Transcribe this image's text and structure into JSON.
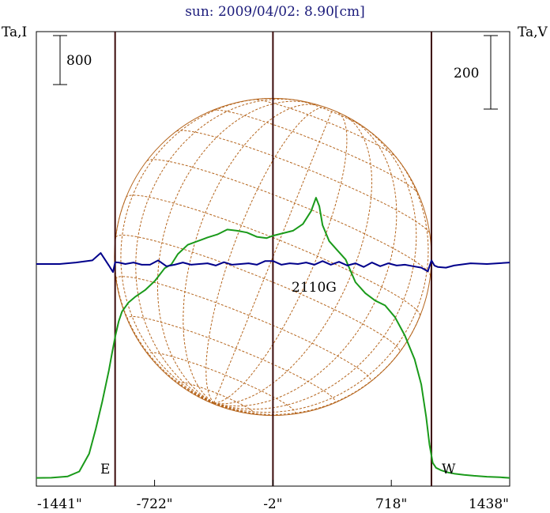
{
  "title": "sun: 2009/04/02: 8.90[cm]",
  "left_axis_label": "Ta,I",
  "right_axis_label": "Ta,V",
  "scale_left": "800",
  "scale_right": "200",
  "east_label": "E",
  "west_label": "W",
  "region_label": "2110G",
  "x_ticks": [
    "-1441\"",
    "-722\"",
    "-2\"",
    "718\"",
    "1438\""
  ],
  "colors": {
    "intensity": "#1a9a1a",
    "polarization": "#00008b",
    "grid": "#b5651d",
    "limb_lines": "#3a0a0a",
    "title": "#1a1a7a"
  },
  "chart_data": {
    "type": "line",
    "title": "sun: 2009/04/02: 8.90[cm]",
    "xlim": [
      -1441,
      1438
    ],
    "x_tick_values": [
      -1441,
      -722,
      -2,
      718,
      1438
    ],
    "limb_positions": [
      -962,
      -2,
      962
    ],
    "series": [
      {
        "name": "Ta,I",
        "axis": "left",
        "x": [
          -1441,
          -1350,
          -1250,
          -1180,
          -1120,
          -1080,
          -1040,
          -1000,
          -980,
          -960,
          -940,
          -920,
          -880,
          -840,
          -780,
          -720,
          -660,
          -620,
          -580,
          -520,
          -460,
          -400,
          -340,
          -280,
          -220,
          -160,
          -100,
          -40,
          0,
          60,
          120,
          180,
          230,
          260,
          280,
          300,
          340,
          380,
          440,
          500,
          560,
          620,
          680,
          740,
          800,
          860,
          900,
          930,
          950,
          970,
          990,
          1020,
          1060,
          1100,
          1160,
          1220,
          1300,
          1380,
          1438
        ],
        "y": [
          5,
          8,
          30,
          110,
          400,
          800,
          1250,
          1760,
          2050,
          2330,
          2560,
          2720,
          2870,
          2960,
          3070,
          3220,
          3430,
          3490,
          3660,
          3810,
          3870,
          3930,
          3980,
          4060,
          4040,
          4010,
          3940,
          3920,
          3960,
          4000,
          4040,
          4150,
          4360,
          4580,
          4440,
          4130,
          3870,
          3750,
          3570,
          3200,
          3020,
          2900,
          2820,
          2630,
          2330,
          1940,
          1530,
          1000,
          550,
          250,
          170,
          130,
          95,
          75,
          55,
          40,
          25,
          15,
          5
        ]
      },
      {
        "name": "Ta,V",
        "axis": "right",
        "x": [
          -1441,
          -1300,
          -1200,
          -1100,
          -1050,
          -1000,
          -975,
          -962,
          -940,
          -900,
          -850,
          -800,
          -750,
          -700,
          -650,
          -600,
          -550,
          -500,
          -450,
          -400,
          -350,
          -300,
          -250,
          -200,
          -150,
          -100,
          -50,
          0,
          50,
          100,
          150,
          200,
          250,
          300,
          350,
          400,
          450,
          500,
          550,
          600,
          650,
          700,
          750,
          800,
          850,
          900,
          940,
          962,
          980,
          1000,
          1050,
          1100,
          1200,
          1300,
          1438
        ],
        "y": [
          0,
          0,
          4,
          10,
          30,
          -4,
          -22,
          5,
          4,
          0,
          4,
          -2,
          -2,
          10,
          -6,
          -2,
          4,
          -2,
          0,
          2,
          -4,
          5,
          -2,
          0,
          2,
          -2,
          8,
          8,
          -2,
          2,
          0,
          4,
          -2,
          8,
          -2,
          6,
          -4,
          2,
          -8,
          4,
          -6,
          2,
          -4,
          -2,
          -6,
          -10,
          -20,
          10,
          -4,
          -8,
          -10,
          -4,
          2,
          0,
          4
        ]
      }
    ]
  }
}
